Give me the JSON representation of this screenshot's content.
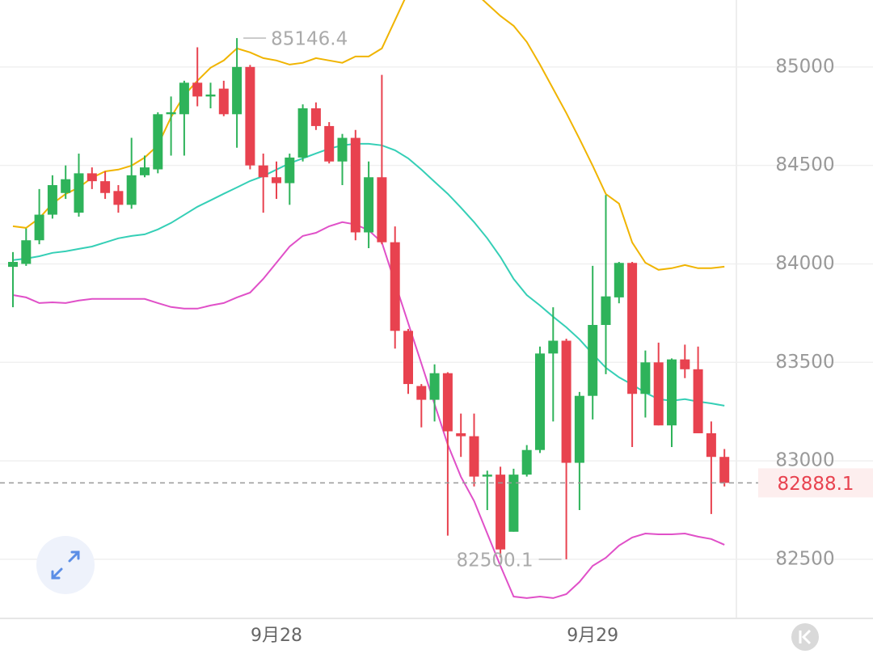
{
  "chart_data": {
    "type": "candlestick",
    "categories": [
      null,
      null,
      null,
      null,
      null,
      null,
      null,
      null,
      null,
      null,
      null,
      null,
      null,
      null,
      null,
      null,
      null,
      null,
      null,
      null,
      "9月28",
      null,
      null,
      null,
      null,
      null,
      null,
      null,
      null,
      null,
      null,
      null,
      null,
      null,
      null,
      null,
      null,
      null,
      null,
      null,
      null,
      null,
      null,
      null,
      "9月29",
      null,
      null,
      null,
      null,
      null,
      null,
      null,
      null,
      null,
      null
    ],
    "series": [
      {
        "up_color": "#2eb35a",
        "down_color": "#e8424f",
        "open": [
          83985,
          84000,
          84120,
          84250,
          84360,
          84260,
          84460,
          84420,
          84370,
          84300,
          84450,
          84480,
          84760,
          84760,
          84920,
          84850,
          84890,
          84760,
          85000,
          84500,
          84440,
          84410,
          84540,
          84790,
          84700,
          84520,
          84640,
          84160,
          84440,
          84110,
          83660,
          83380,
          83310,
          83445,
          83140,
          83125,
          82920,
          82930,
          82640,
          82930,
          83055,
          83545,
          83610,
          82990,
          83330,
          83690,
          83830,
          84005,
          83340,
          83500,
          83180,
          83515,
          83465,
          83140,
          83020
        ],
        "high": [
          84060,
          84180,
          84380,
          84450,
          84500,
          84560,
          84490,
          84470,
          84400,
          84640,
          84550,
          84770,
          84850,
          84930,
          85100,
          84920,
          84930,
          85146.4,
          85010,
          84560,
          84520,
          84560,
          84810,
          84820,
          84720,
          84660,
          84680,
          84520,
          84960,
          84190,
          83670,
          83390,
          83490,
          83450,
          83240,
          83240,
          82950,
          82970,
          82960,
          83080,
          83580,
          83780,
          83620,
          83350,
          83990,
          84350,
          84010,
          84010,
          83560,
          83600,
          83520,
          83590,
          83580,
          83200,
          83060
        ],
        "low": [
          83780,
          83990,
          84100,
          84230,
          84330,
          84240,
          84380,
          84330,
          84260,
          84280,
          84440,
          84460,
          84550,
          84550,
          84800,
          84790,
          84750,
          84590,
          84480,
          84260,
          84330,
          84300,
          84520,
          84680,
          84510,
          84400,
          84120,
          84080,
          84100,
          83570,
          83340,
          83170,
          83200,
          82620,
          83020,
          82870,
          82750,
          82510,
          82640,
          82920,
          83040,
          83200,
          82500.1,
          82750,
          83210,
          83440,
          83800,
          83070,
          83220,
          83180,
          83070,
          83420,
          83140,
          82730,
          82870
        ],
        "close": [
          84010,
          84120,
          84250,
          84400,
          84430,
          84460,
          84420,
          84360,
          84300,
          84450,
          84490,
          84760,
          84770,
          84920,
          84850,
          84860,
          84760,
          85000,
          84500,
          84440,
          84410,
          84540,
          84790,
          84700,
          84520,
          84640,
          84160,
          84440,
          84110,
          83660,
          83390,
          83310,
          83445,
          83150,
          83125,
          82920,
          82930,
          82550,
          82930,
          83055,
          83545,
          83610,
          82990,
          83330,
          83690,
          83835,
          84005,
          83340,
          83500,
          83180,
          83515,
          83465,
          83140,
          83020,
          82888.1
        ]
      }
    ],
    "lines": [
      {
        "color": "#f0b400",
        "values": [
          84191,
          84183,
          84232,
          84306,
          84355,
          84388,
          84438,
          84470,
          84479,
          84499,
          84540,
          84602,
          84745,
          84856,
          84930,
          84996,
          85033,
          85094,
          85074,
          85045,
          85033,
          85012,
          85021,
          85045,
          85033,
          85021,
          85053,
          85053,
          85094,
          85238,
          85382,
          85443,
          85464,
          85464,
          85443,
          85382,
          85320,
          85259,
          85209,
          85127,
          85012,
          84889,
          84766,
          84635,
          84499,
          84355,
          84306,
          84109,
          84006,
          83970,
          83978,
          83994,
          83978,
          83978,
          83986
        ]
      },
      {
        "color": "#35cfb6",
        "values": [
          84019,
          84027,
          84039,
          84056,
          84064,
          84076,
          84088,
          84109,
          84130,
          84142,
          84150,
          84175,
          84208,
          84249,
          84290,
          84323,
          84356,
          84388,
          84421,
          84446,
          84479,
          84511,
          84536,
          84561,
          84585,
          84602,
          84610,
          84610,
          84602,
          84577,
          84536,
          84479,
          84417,
          84356,
          84286,
          84212,
          84130,
          84035,
          83924,
          83842,
          83789,
          83732,
          83678,
          83617,
          83543,
          83473,
          83424,
          83387,
          83346,
          83313,
          83305,
          83313,
          83301,
          83292,
          83280
        ]
      },
      {
        "color": "#e050c8",
        "values": [
          83842,
          83830,
          83801,
          83805,
          83801,
          83814,
          83822,
          83822,
          83822,
          83822,
          83822,
          83801,
          83781,
          83773,
          83773,
          83789,
          83801,
          83830,
          83854,
          83924,
          84006,
          84088,
          84142,
          84158,
          84191,
          84212,
          84200,
          84171,
          84109,
          83904,
          83699,
          83494,
          83288,
          83083,
          82919,
          82796,
          82631,
          82467,
          82311,
          82303,
          82311,
          82303,
          82323,
          82385,
          82467,
          82508,
          82570,
          82611,
          82631,
          82627,
          82627,
          82631,
          82615,
          82603,
          82574
        ]
      }
    ],
    "ylim": [
      82200,
      85340
    ],
    "yticks": [
      82500,
      83000,
      83500,
      84000,
      84500,
      85000
    ],
    "grid": true
  }
}
